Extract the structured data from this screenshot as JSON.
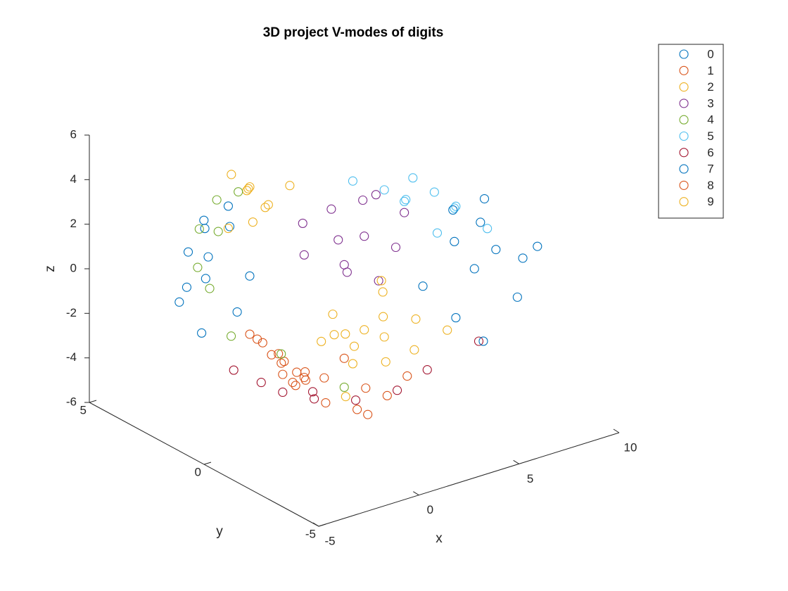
{
  "chart_data": {
    "type": "scatter3d",
    "title": "3D project V-modes of digits",
    "xlabel": "x",
    "ylabel": "y",
    "zlabel": "z",
    "xlim": [
      -5,
      10
    ],
    "ylim": [
      -5,
      5
    ],
    "zlim": [
      -6,
      6
    ],
    "xticks": [
      -5,
      0,
      5,
      10
    ],
    "yticks": [
      -5,
      0,
      5
    ],
    "zticks": [
      -6,
      -4,
      -2,
      0,
      2,
      4,
      6
    ],
    "legend": "upper right",
    "series": [
      {
        "name": "0",
        "color": "#0072BD",
        "x": [
          -2.5,
          -3,
          -2,
          -3.5,
          -2.8,
          -1.5,
          -2.2,
          -3.2,
          -1.8,
          -2.6,
          -1,
          -2.9
        ],
        "y": [
          2,
          2.5,
          1.5,
          2,
          3,
          2,
          1,
          1.5,
          2.8,
          2.2,
          1.5,
          1.8
        ],
        "z": [
          1.5,
          0,
          3,
          2,
          -1,
          3.5,
          -0.5,
          1,
          2.5,
          -2,
          0.5,
          3
        ]
      },
      {
        "name": "1",
        "color": "#D95319",
        "x": [
          -1,
          -1.5,
          -0.5,
          -1.2,
          0,
          -0.8,
          -1.8,
          -0.3,
          -1,
          -1.4,
          0.2,
          -0.6
        ],
        "y": [
          0,
          0.5,
          -0.5,
          1,
          0,
          0.3,
          0.8,
          -0.3,
          -0.5,
          0.2,
          0.5,
          0.6
        ],
        "z": [
          -2.5,
          -1.8,
          -3.2,
          -2,
          -3.5,
          -2.8,
          -1.5,
          -3,
          -3.3,
          -2.2,
          -3.6,
          -2.6
        ]
      },
      {
        "name": "2",
        "color": "#EDB120",
        "x": [
          -0.5,
          0,
          -1,
          0.5,
          -0.2,
          -1.5,
          1,
          0.3,
          -0.8,
          2,
          3,
          1.5
        ],
        "y": [
          2,
          2.5,
          1.5,
          2,
          3,
          2,
          1.5,
          2.5,
          1,
          1,
          0.5,
          -0.5
        ],
        "z": [
          4,
          3.5,
          4.5,
          3,
          4,
          2.5,
          4,
          2,
          3.8,
          -3,
          -4,
          -4.5
        ]
      },
      {
        "name": "3",
        "color": "#7E2F8E",
        "x": [
          1.7,
          3,
          0.5,
          4,
          2.5,
          1,
          3.5,
          2,
          5,
          0,
          2.8,
          4.5
        ],
        "y": [
          0,
          0,
          0.5,
          -0.5,
          1,
          -1,
          0.5,
          0,
          0,
          0,
          -0.8,
          0.8
        ],
        "z": [
          2.2,
          2,
          3,
          1.5,
          2.8,
          1.5,
          3.2,
          1,
          2.5,
          2,
          0.5,
          3
        ]
      },
      {
        "name": "4",
        "color": "#77AC30",
        "x": [
          -2,
          -3,
          -1.5,
          -2.5,
          -1,
          0,
          -2.8,
          2,
          -1.8
        ],
        "y": [
          2,
          1.5,
          2.5,
          1,
          2,
          1,
          2.2,
          0,
          3
        ],
        "z": [
          2.5,
          0.5,
          3.5,
          -1.5,
          4,
          -3,
          1,
          -4.5,
          2
        ]
      },
      {
        "name": "5",
        "color": "#4DBEEE",
        "x": [
          5,
          6,
          4,
          7,
          5.5,
          3,
          6.5,
          8,
          4.5,
          7.5
        ],
        "y": [
          0,
          0.5,
          0,
          -0.5,
          -1,
          0.5,
          0,
          -1,
          -0.5,
          0
        ],
        "z": [
          3,
          3.5,
          3.8,
          2.5,
          2,
          4.2,
          3,
          1.5,
          3.5,
          2
        ]
      },
      {
        "name": "6",
        "color": "#A2142F",
        "x": [
          -1,
          0.5,
          2,
          3.5,
          -1.8,
          1,
          5,
          7,
          -0.5
        ],
        "y": [
          1,
          0,
          -0.5,
          -1,
          1.5,
          0.5,
          -1,
          -1.5,
          0.5
        ],
        "z": [
          -4,
          -4.6,
          -4.8,
          -4.5,
          -3.5,
          -4.7,
          -4,
          -3,
          -4.3
        ]
      },
      {
        "name": "7",
        "color": "#0072BD",
        "x": [
          8.5,
          9,
          7.5,
          10,
          8,
          9.5,
          7,
          8.8,
          6.5,
          10.5,
          7.8,
          9
        ],
        "y": [
          0,
          -0.5,
          0,
          -0.8,
          0.5,
          -1,
          -0.5,
          0,
          0.5,
          -1,
          -1,
          0
        ],
        "z": [
          -1,
          0,
          0.5,
          -0.5,
          1.5,
          -2,
          -2.5,
          1,
          -1.5,
          0,
          -3.5,
          2
        ]
      },
      {
        "name": "8",
        "color": "#D95319",
        "x": [
          0.5,
          1.5,
          2.5,
          0,
          3,
          1,
          4,
          -0.5,
          2,
          1.8
        ],
        "y": [
          -0.5,
          -1,
          -0.5,
          0.5,
          -1,
          0,
          -1,
          0.5,
          0,
          -1.2
        ],
        "z": [
          -4.5,
          -4.8,
          -4.4,
          -4,
          -4.6,
          -3.8,
          -4,
          -3.5,
          -3.2,
          -5
        ]
      },
      {
        "name": "9",
        "color": "#EDB120",
        "x": [
          3,
          4,
          2,
          5,
          3.5,
          2.5,
          4.5,
          1.5,
          6,
          3.2,
          5.5,
          2.8,
          4.2
        ],
        "y": [
          0,
          0,
          0.5,
          -0.5,
          -0.5,
          0,
          0.5,
          0,
          -1,
          1,
          0,
          -1,
          0.3
        ],
        "z": [
          -2.2,
          -2.8,
          -1.5,
          -2,
          -3.5,
          -2.8,
          -1.2,
          -2,
          -2.5,
          -3,
          -3.8,
          -1,
          -0.5
        ]
      }
    ]
  }
}
